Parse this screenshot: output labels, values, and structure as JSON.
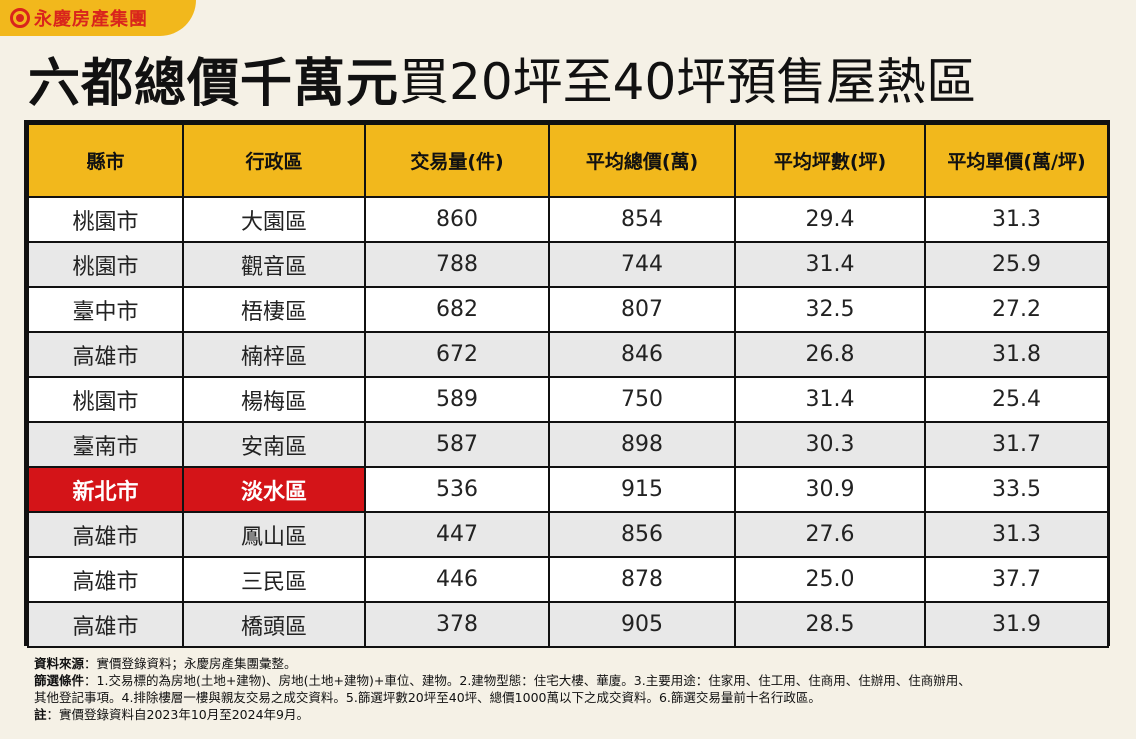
{
  "brand": {
    "name": "永慶房產集團"
  },
  "title": {
    "bold": "六都總價千萬元",
    "light": "買20坪至40坪預售屋熱區"
  },
  "chart_data": {
    "type": "table",
    "columns": [
      "縣市",
      "行政區",
      "交易量(件)",
      "平均總價(萬)",
      "平均坪數(坪)",
      "平均單價(萬/坪)"
    ],
    "rows": [
      [
        "桃園市",
        "大園區",
        "860",
        "854",
        "29.4",
        "31.3"
      ],
      [
        "桃園市",
        "觀音區",
        "788",
        "744",
        "31.4",
        "25.9"
      ],
      [
        "臺中市",
        "梧棲區",
        "682",
        "807",
        "32.5",
        "27.2"
      ],
      [
        "高雄市",
        "楠梓區",
        "672",
        "846",
        "26.8",
        "31.8"
      ],
      [
        "桃園市",
        "楊梅區",
        "589",
        "750",
        "31.4",
        "25.4"
      ],
      [
        "臺南市",
        "安南區",
        "587",
        "898",
        "30.3",
        "31.7"
      ],
      [
        "新北市",
        "淡水區",
        "536",
        "915",
        "30.9",
        "33.5"
      ],
      [
        "高雄市",
        "鳳山區",
        "447",
        "856",
        "27.6",
        "31.3"
      ],
      [
        "高雄市",
        "三民區",
        "446",
        "878",
        "25.0",
        "37.7"
      ],
      [
        "高雄市",
        "橋頭區",
        "378",
        "905",
        "28.5",
        "31.9"
      ]
    ],
    "highlight_row": 6,
    "highlight_color": "#d41418",
    "header_color": "#f2b81c"
  },
  "notes": {
    "source_label": "資料來源",
    "source_text": "：實價登錄資料；永慶房產集團彙整。",
    "conditions_label": "篩選條件",
    "conditions_line1": "：1.交易標的為房地(土地+建物)、房地(土地+建物)+車位、建物。2.建物型態：住宅大樓、華廈。3.主要用途：住家用、住工用、住商用、住辦用、住商辦用、",
    "conditions_line2": "其他登記事項。4.排除樓層一樓與親友交易之成交資料。5.篩選坪數20坪至40坪、總價1000萬以下之成交資料。6.篩選交易量前十名行政區。",
    "note_label": "註",
    "note_text": "：實價登錄資料自2023年10月至2024年9月。"
  }
}
